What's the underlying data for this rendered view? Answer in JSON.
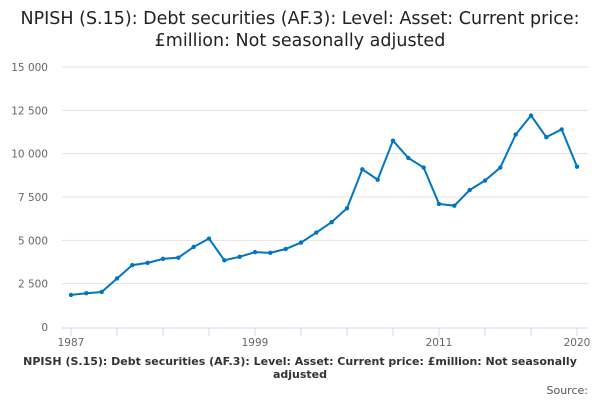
{
  "chart_data": {
    "type": "line",
    "title": "NPISH (S.15): Debt securities (AF.3): Level: Asset: Current price: £million: Not seasonally adjusted",
    "footer": "NPISH (S.15): Debt securities (AF.3): Level: Asset: Current price: £million: Not seasonally adjusted",
    "source": "Source:",
    "x": [
      1987,
      1988,
      1989,
      1990,
      1991,
      1992,
      1993,
      1994,
      1995,
      1996,
      1997,
      1998,
      1999,
      2000,
      2001,
      2002,
      2003,
      2004,
      2005,
      2006,
      2007,
      2008,
      2009,
      2010,
      2011,
      2012,
      2013,
      2014,
      2015,
      2016,
      2017,
      2018,
      2019,
      2020
    ],
    "values": [
      1850,
      1950,
      2020,
      2800,
      3570,
      3700,
      3930,
      4000,
      4620,
      5100,
      3850,
      4050,
      4320,
      4280,
      4500,
      4870,
      5450,
      6050,
      6850,
      9100,
      8500,
      10750,
      9750,
      9200,
      7100,
      7000,
      7900,
      8450,
      9200,
      11100,
      12200,
      10950,
      11400,
      9250
    ],
    "xticks": [
      "1987",
      "1999",
      "2011",
      "2020"
    ],
    "yticks": [
      "0",
      "2 500",
      "5 000",
      "7 500",
      "10 000",
      "12 500",
      "15 000"
    ],
    "ylim": [
      0,
      15000
    ],
    "grid": true,
    "color": "#0075c2"
  }
}
